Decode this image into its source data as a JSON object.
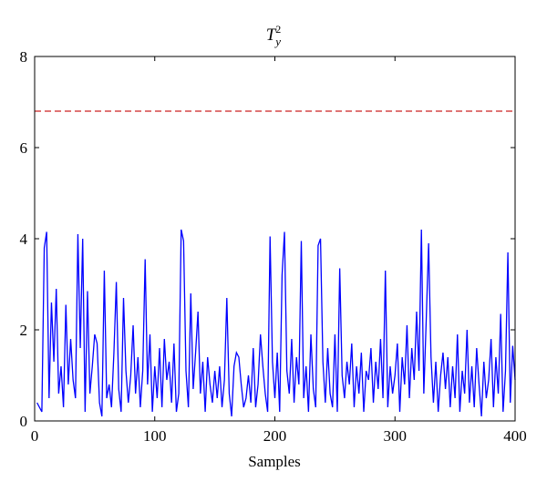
{
  "chart_data": {
    "type": "line",
    "title": "T",
    "title_sub": "y",
    "title_sup": "2",
    "xlabel": "Samples",
    "xlim": [
      0,
      400
    ],
    "xticks": [
      0,
      100,
      200,
      300,
      400
    ],
    "ylim": [
      0,
      8
    ],
    "yticks": [
      0,
      2,
      4,
      6,
      8
    ],
    "series": [
      {
        "color": "#0000ff",
        "dashed": false,
        "x": [
          2,
          4,
          6,
          8,
          10,
          12,
          14,
          16,
          18,
          20,
          22,
          24,
          26,
          28,
          30,
          32,
          34,
          36,
          38,
          40,
          42,
          44,
          46,
          48,
          50,
          52,
          54,
          56,
          58,
          60,
          62,
          64,
          66,
          68,
          70,
          72,
          74,
          76,
          78,
          80,
          82,
          84,
          86,
          88,
          90,
          92,
          94,
          96,
          98,
          100,
          102,
          104,
          106,
          108,
          110,
          112,
          114,
          116,
          118,
          120,
          122,
          124,
          126,
          128,
          130,
          132,
          134,
          136,
          138,
          140,
          142,
          144,
          146,
          148,
          150,
          152,
          154,
          156,
          158,
          160,
          162,
          164,
          166,
          168,
          170,
          172,
          174,
          176,
          178,
          180,
          182,
          184,
          186,
          188,
          190,
          192,
          194,
          196,
          198,
          200,
          202,
          204,
          206,
          208,
          210,
          212,
          214,
          216,
          218,
          220,
          222,
          224,
          226,
          228,
          230,
          232,
          234,
          236,
          238,
          240,
          242,
          244,
          246,
          248,
          250,
          252,
          254,
          256,
          258,
          260,
          262,
          264,
          266,
          268,
          270,
          272,
          274,
          276,
          278,
          280,
          282,
          284,
          286,
          288,
          290,
          292,
          294,
          296,
          298,
          300,
          302,
          304,
          306,
          308,
          310,
          312,
          314,
          316,
          318,
          320,
          322,
          324,
          326,
          328,
          330,
          332,
          334,
          336,
          338,
          340,
          342,
          344,
          346,
          348,
          350,
          352,
          354,
          356,
          358,
          360,
          362,
          364,
          366,
          368,
          370,
          372,
          374,
          376,
          378,
          380,
          382,
          384,
          386,
          388,
          390,
          392,
          394,
          396,
          398,
          400
        ],
        "values": [
          0.4,
          0.3,
          0.2,
          3.8,
          4.15,
          0.5,
          2.6,
          1.3,
          2.9,
          0.6,
          1.2,
          0.3,
          2.55,
          0.8,
          1.8,
          0.9,
          0.5,
          4.1,
          1.6,
          4.0,
          0.2,
          2.85,
          0.6,
          1.2,
          1.9,
          1.7,
          0.4,
          0.1,
          3.3,
          0.5,
          0.8,
          0.3,
          1.5,
          3.05,
          0.7,
          0.2,
          2.7,
          1.1,
          0.4,
          1.0,
          2.1,
          0.6,
          1.4,
          0.3,
          1.1,
          3.55,
          0.8,
          1.9,
          0.2,
          1.2,
          0.5,
          1.6,
          0.3,
          1.8,
          0.9,
          1.3,
          0.4,
          1.7,
          0.2,
          0.6,
          4.2,
          3.95,
          1.1,
          0.3,
          2.8,
          0.7,
          1.5,
          2.4,
          0.6,
          1.3,
          0.2,
          1.4,
          0.8,
          0.4,
          1.1,
          0.5,
          1.2,
          0.3,
          0.9,
          2.7,
          0.6,
          0.1,
          1.2,
          1.5,
          1.4,
          0.8,
          0.3,
          0.5,
          1.0,
          0.4,
          1.6,
          0.3,
          0.8,
          1.9,
          1.2,
          0.6,
          0.2,
          4.05,
          1.3,
          0.5,
          1.5,
          0.2,
          3.2,
          4.15,
          1.1,
          0.6,
          1.8,
          0.4,
          1.4,
          0.8,
          3.95,
          0.5,
          1.2,
          0.2,
          1.9,
          0.7,
          0.3,
          3.85,
          4.0,
          1.3,
          0.4,
          1.6,
          0.6,
          0.3,
          1.9,
          0.2,
          3.35,
          1.0,
          0.5,
          1.3,
          0.8,
          1.7,
          0.3,
          1.2,
          0.6,
          1.5,
          0.2,
          1.1,
          0.9,
          1.6,
          0.4,
          1.3,
          0.7,
          1.8,
          0.5,
          3.3,
          0.3,
          1.2,
          0.6,
          1.0,
          1.7,
          0.2,
          1.4,
          0.8,
          2.1,
          0.5,
          1.6,
          0.9,
          2.4,
          1.1,
          4.2,
          0.6,
          2.2,
          3.9,
          1.4,
          0.4,
          1.3,
          0.2,
          1.0,
          1.5,
          0.7,
          1.4,
          0.3,
          1.2,
          0.5,
          1.9,
          0.2,
          1.1,
          0.6,
          2.0,
          0.4,
          1.2,
          0.3,
          1.6,
          0.8,
          0.1,
          1.3,
          0.5,
          0.9,
          1.8,
          0.3,
          1.4,
          0.6,
          2.35,
          0.2,
          1.1,
          3.7,
          0.4,
          1.65,
          0.9
        ]
      },
      {
        "color": "#cc2222",
        "dashed": true,
        "x": [
          0,
          400
        ],
        "values": [
          6.8,
          6.8
        ]
      }
    ]
  }
}
